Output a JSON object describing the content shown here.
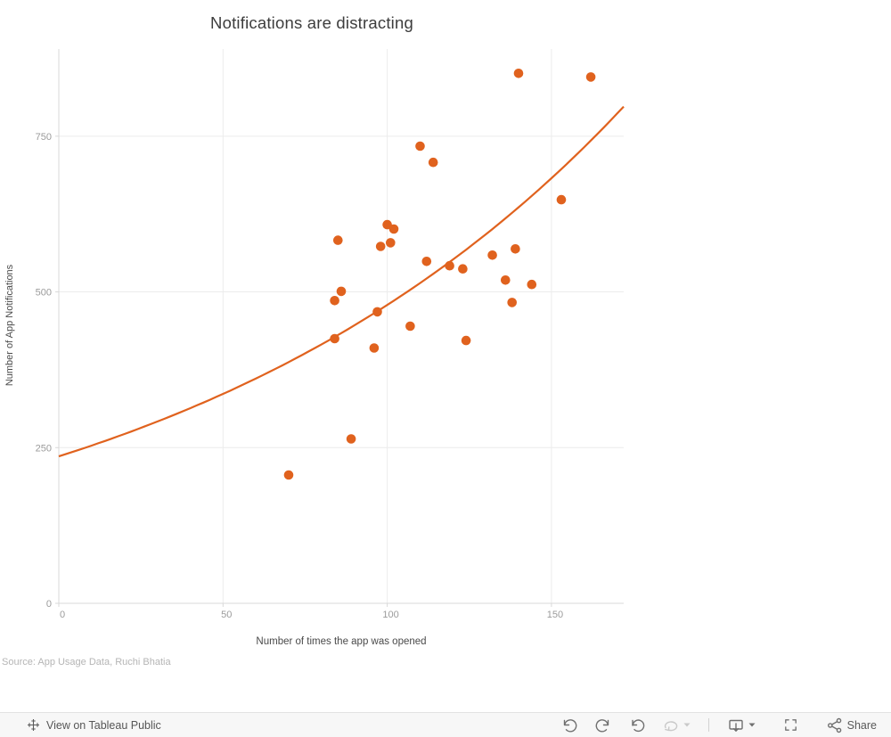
{
  "header": {
    "title": "Notifications are distracting"
  },
  "chart_data": {
    "type": "scatter",
    "title": "Notifications are distracting",
    "xlabel": "Number of times the app was opened",
    "ylabel": "Number of App Notifications",
    "xlim": [
      0,
      172
    ],
    "ylim": [
      0,
      890
    ],
    "x_ticks": [
      0,
      50,
      100,
      150
    ],
    "y_ticks": [
      0,
      250,
      500,
      750
    ],
    "grid": true,
    "legend": "none",
    "point_color": "#e0621e",
    "trend_color": "#e0621e",
    "points": [
      [
        70,
        206
      ],
      [
        84,
        425
      ],
      [
        84,
        486
      ],
      [
        85,
        583
      ],
      [
        86,
        501
      ],
      [
        89,
        264
      ],
      [
        96,
        410
      ],
      [
        97,
        468
      ],
      [
        98,
        573
      ],
      [
        100,
        608
      ],
      [
        101,
        579
      ],
      [
        102,
        601
      ],
      [
        107,
        445
      ],
      [
        110,
        734
      ],
      [
        112,
        549
      ],
      [
        114,
        708
      ],
      [
        119,
        542
      ],
      [
        123,
        537
      ],
      [
        124,
        422
      ],
      [
        132,
        559
      ],
      [
        136,
        519
      ],
      [
        138,
        483
      ],
      [
        139,
        569
      ],
      [
        140,
        851
      ],
      [
        144,
        512
      ],
      [
        153,
        648
      ],
      [
        162,
        845
      ]
    ],
    "trend": {
      "type": "exponential",
      "a": 236,
      "b": 0.00708,
      "x_start": 0,
      "x_end": 172
    }
  },
  "source": {
    "text": "Source: App Usage Data, Ruchi Bhatia"
  },
  "toolbar": {
    "view_label": "View on Tableau Public",
    "share_label": "Share",
    "icons": [
      "tableau-logo",
      "undo",
      "redo",
      "reset",
      "refresh",
      "caret-down",
      "separator",
      "device-preview",
      "caret-down",
      "fullscreen",
      "share"
    ]
  },
  "colors": {
    "accent_orange": "#e0621e",
    "gridline": "#ececec",
    "axis_line": "#d9d9d9",
    "tick_label": "#9b9b9b",
    "axis_title": "#4a4a4a",
    "toolbar_bg": "#f7f7f7"
  }
}
